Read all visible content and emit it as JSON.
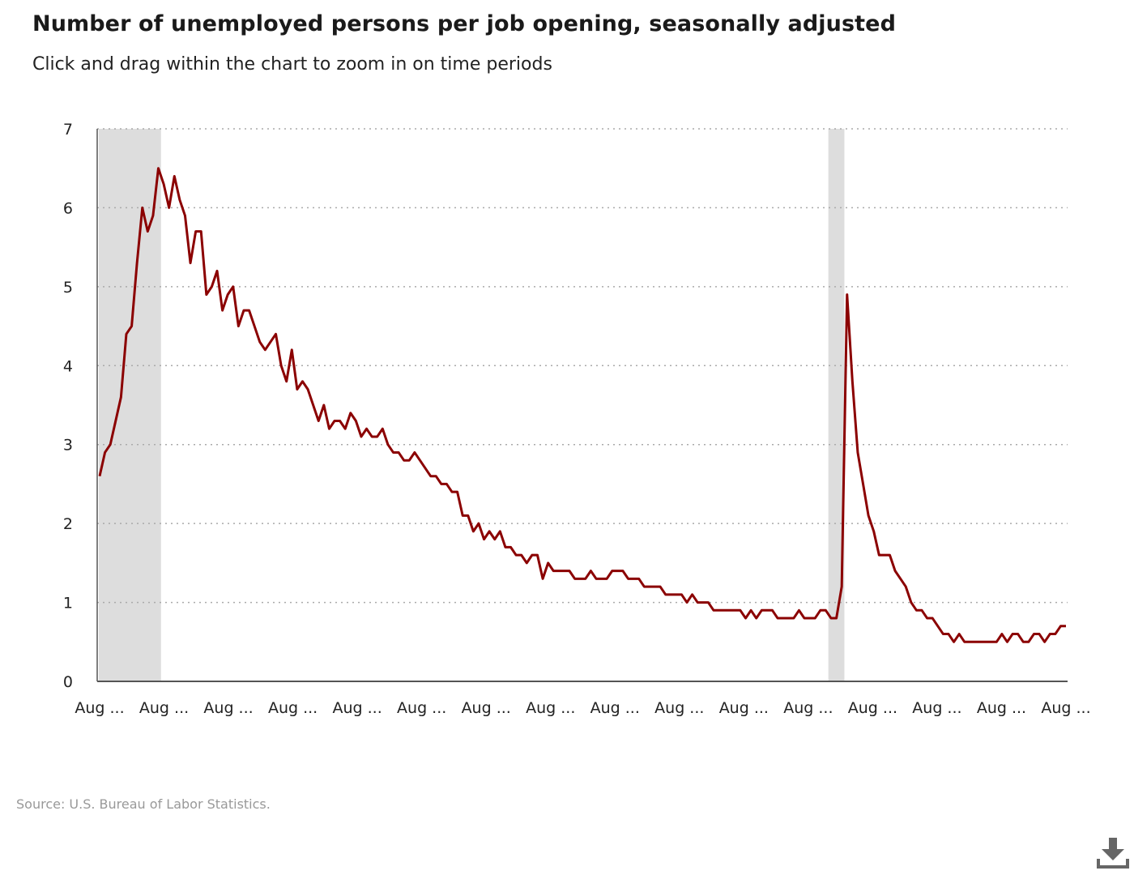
{
  "header": {
    "title": "Number of unemployed persons per job opening, seasonally adjusted",
    "subtitle": "Click and drag within the chart to zoom in on time periods"
  },
  "footer": {
    "source": "Source: U.S. Bureau of Labor Statistics."
  },
  "toolbar": {
    "download_icon": "download-icon"
  },
  "colors": {
    "series_line": "#8b0000",
    "recession_band": "#dddddd",
    "grid": "#aaaaaa",
    "axis": "#555555",
    "source_text": "#999999"
  },
  "chart_data": {
    "type": "line",
    "title": "Number of unemployed persons per job opening, seasonally adjusted",
    "xlabel": "",
    "ylabel": "",
    "ylim": [
      0,
      7
    ],
    "yticks": [
      0,
      1,
      2,
      3,
      4,
      5,
      6,
      7
    ],
    "xtick_labels": [
      "Aug ...",
      "Aug ...",
      "Aug ...",
      "Aug ...",
      "Aug ...",
      "Aug ...",
      "Aug ...",
      "Aug ...",
      "Aug ...",
      "Aug ...",
      "Aug ...",
      "Aug ...",
      "Aug ...",
      "Aug ...",
      "Aug ...",
      "Aug ..."
    ],
    "grid": "horizontal dotted",
    "legend": "none",
    "recession_bands": [
      [
        0,
        11
      ],
      [
        137,
        139
      ]
    ],
    "series": [
      {
        "values": [
          2.6,
          2.9,
          3.0,
          3.3,
          3.6,
          4.4,
          4.5,
          5.3,
          6.0,
          5.7,
          5.9,
          6.5,
          6.3,
          6.0,
          6.4,
          6.1,
          5.9,
          5.3,
          5.7,
          5.7,
          4.9,
          5.0,
          5.2,
          4.7,
          4.9,
          5.0,
          4.5,
          4.7,
          4.7,
          4.5,
          4.3,
          4.2,
          4.3,
          4.4,
          4.0,
          3.8,
          4.2,
          3.7,
          3.8,
          3.7,
          3.5,
          3.3,
          3.5,
          3.2,
          3.3,
          3.3,
          3.2,
          3.4,
          3.3,
          3.1,
          3.2,
          3.1,
          3.1,
          3.2,
          3.0,
          2.9,
          2.9,
          2.8,
          2.8,
          2.9,
          2.8,
          2.7,
          2.6,
          2.6,
          2.5,
          2.5,
          2.4,
          2.4,
          2.1,
          2.1,
          1.9,
          2.0,
          1.8,
          1.9,
          1.8,
          1.9,
          1.7,
          1.7,
          1.6,
          1.6,
          1.5,
          1.6,
          1.6,
          1.3,
          1.5,
          1.4,
          1.4,
          1.4,
          1.4,
          1.3,
          1.3,
          1.3,
          1.4,
          1.3,
          1.3,
          1.3,
          1.4,
          1.4,
          1.4,
          1.3,
          1.3,
          1.3,
          1.2,
          1.2,
          1.2,
          1.2,
          1.1,
          1.1,
          1.1,
          1.1,
          1.0,
          1.1,
          1.0,
          1.0,
          1.0,
          0.9,
          0.9,
          0.9,
          0.9,
          0.9,
          0.9,
          0.8,
          0.9,
          0.8,
          0.9,
          0.9,
          0.9,
          0.8,
          0.8,
          0.8,
          0.8,
          0.9,
          0.8,
          0.8,
          0.8,
          0.9,
          0.9,
          0.8,
          0.8,
          1.2,
          4.9,
          3.8,
          2.9,
          2.5,
          2.1,
          1.9,
          1.6,
          1.6,
          1.6,
          1.4,
          1.3,
          1.2,
          1.0,
          0.9,
          0.9,
          0.8,
          0.8,
          0.7,
          0.6,
          0.6,
          0.5,
          0.6,
          0.5,
          0.5,
          0.5,
          0.5,
          0.5,
          0.5,
          0.5,
          0.6,
          0.5,
          0.6,
          0.6,
          0.5,
          0.5,
          0.6,
          0.6,
          0.5,
          0.6,
          0.6,
          0.7,
          0.7
        ]
      }
    ]
  }
}
